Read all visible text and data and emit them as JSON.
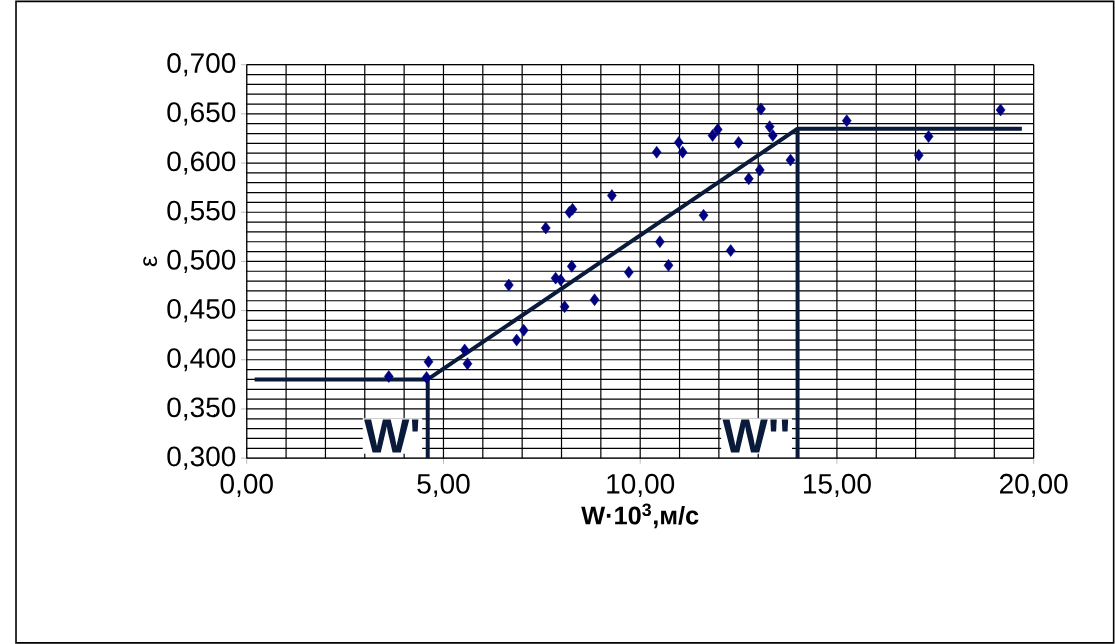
{
  "chart_data": {
    "type": "scatter",
    "xlabel": "W·10$^{3}$,м/с",
    "ylabel": "ε",
    "xlim": [
      0,
      20
    ],
    "ylim": [
      0.3,
      0.7
    ],
    "xticks": [
      {
        "value": 0,
        "label": "0,00"
      },
      {
        "value": 5,
        "label": "5,00"
      },
      {
        "value": 10,
        "label": "10,00"
      },
      {
        "value": 15,
        "label": "15,00"
      },
      {
        "value": 20,
        "label": "20,00"
      }
    ],
    "yticks": [
      {
        "value": 0.3,
        "label": "0,300"
      },
      {
        "value": 0.35,
        "label": "0,350"
      },
      {
        "value": 0.4,
        "label": "0,400"
      },
      {
        "value": 0.45,
        "label": "0,450"
      },
      {
        "value": 0.5,
        "label": "0,500"
      },
      {
        "value": 0.55,
        "label": "0,550"
      },
      {
        "value": 0.6,
        "label": "0,600"
      },
      {
        "value": 0.65,
        "label": "0,650"
      },
      {
        "value": 0.7,
        "label": "0,700"
      }
    ],
    "grid": true,
    "series": [
      {
        "color": "#000080",
        "marker": "diamond",
        "x": [
          3.61,
          4.57,
          4.62,
          5.54,
          5.61,
          6.66,
          6.86,
          7.04,
          7.6,
          7.85,
          7.98,
          8.08,
          8.2,
          8.28,
          8.26,
          8.84,
          9.28,
          9.71,
          10.42,
          10.5,
          10.72,
          10.98,
          11.08,
          11.61,
          11.84,
          11.97,
          12.3,
          12.5,
          12.76,
          13.04,
          13.07,
          13.29,
          13.37,
          13.82,
          15.25,
          17.08,
          17.33,
          19.16
        ],
        "values": [
          0.383,
          0.382,
          0.398,
          0.41,
          0.396,
          0.476,
          0.42,
          0.43,
          0.534,
          0.483,
          0.481,
          0.454,
          0.55,
          0.553,
          0.495,
          0.461,
          0.567,
          0.489,
          0.611,
          0.52,
          0.496,
          0.621,
          0.611,
          0.547,
          0.628,
          0.634,
          0.511,
          0.621,
          0.584,
          0.593,
          0.655,
          0.637,
          0.628,
          0.603,
          0.643,
          0.608,
          0.627,
          0.654
        ]
      },
      {
        "type": "line",
        "color": "#0a1a3a",
        "marker": "none",
        "x": [
          0.2,
          4.6,
          14.0,
          19.7
        ],
        "values": [
          0.38,
          0.38,
          0.635,
          0.635
        ]
      },
      {
        "type": "line",
        "color": "#0a1a3a",
        "marker": "none",
        "x": [
          4.6,
          4.6
        ],
        "values": [
          0.3,
          0.38
        ]
      },
      {
        "type": "line",
        "color": "#0a1a3a",
        "marker": "none",
        "x": [
          14.0,
          14.0
        ],
        "values": [
          0.3,
          0.635
        ]
      }
    ],
    "annotations": [
      {
        "text": "W'",
        "x": 4.6
      },
      {
        "text": "W''",
        "x": 14.0
      }
    ]
  }
}
